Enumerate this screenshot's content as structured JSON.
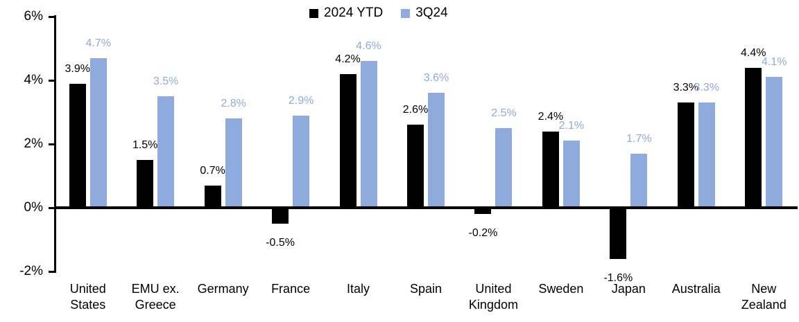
{
  "legend": {
    "items": [
      {
        "label": "2024 YTD",
        "color": "#000000"
      },
      {
        "label": "3Q24",
        "color": "#8FAADC"
      }
    ]
  },
  "chart_data": {
    "type": "bar",
    "title": "",
    "xlabel": "",
    "ylabel": "",
    "ylim": [
      -2,
      6
    ],
    "grid": false,
    "legend_position": "top-center",
    "categories": [
      "United States",
      "EMU ex. Greece",
      "Germany",
      "France",
      "Italy",
      "Spain",
      "United Kingdom",
      "Sweden",
      "Japan",
      "Australia",
      "New Zealand"
    ],
    "series": [
      {
        "name": "2024 YTD",
        "color": "#000000",
        "label_color": "#000000",
        "values": [
          3.9,
          1.5,
          0.7,
          -0.5,
          4.2,
          2.6,
          -0.2,
          2.4,
          -1.6,
          3.3,
          4.4
        ],
        "labels": [
          "3.9%",
          "1.5%",
          "0.7%",
          "-0.5%",
          "4.2%",
          "2.6%",
          "-0.2%",
          "2.4%",
          "-1.6%",
          "3.3%",
          "4.4%"
        ]
      },
      {
        "name": "3Q24",
        "color": "#8FAADC",
        "label_color": "#8FAADC",
        "values": [
          4.7,
          3.5,
          2.8,
          2.9,
          4.6,
          3.6,
          2.5,
          2.1,
          1.7,
          3.3,
          4.1
        ],
        "labels": [
          "4.7%",
          "3.5%",
          "2.8%",
          "2.9%",
          "4.6%",
          "3.6%",
          "2.5%",
          "2.1%",
          "1.7%",
          "3.3%",
          "4.1%"
        ]
      }
    ],
    "yticks": [
      {
        "value": 6,
        "label": "6%"
      },
      {
        "value": 4,
        "label": "4%"
      },
      {
        "value": 2,
        "label": "2%"
      },
      {
        "value": 0,
        "label": "0%"
      },
      {
        "value": -2,
        "label": "-2%"
      }
    ]
  }
}
